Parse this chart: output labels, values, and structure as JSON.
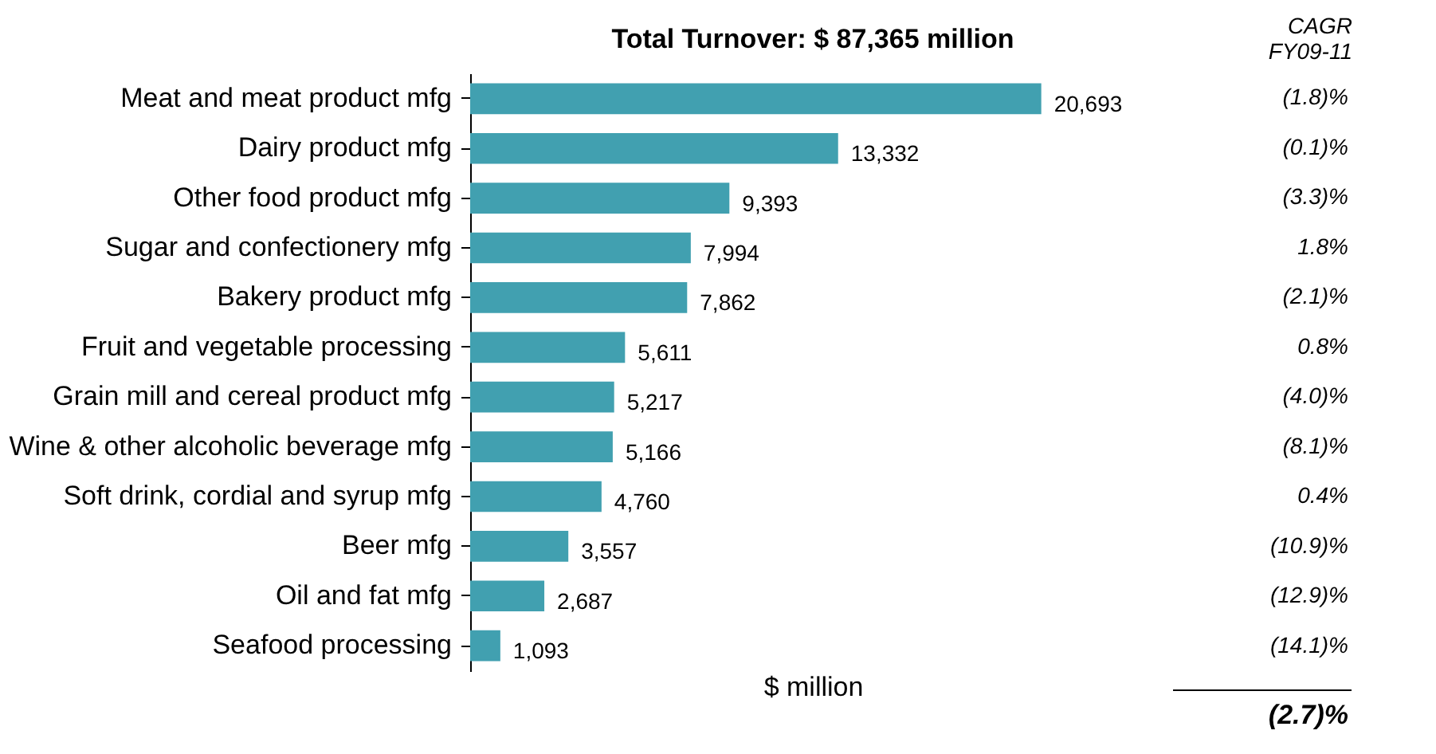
{
  "chart_data": {
    "type": "bar",
    "orientation": "horizontal",
    "title": "Total Turnover: $ 87,365 million",
    "xlabel": "$ million",
    "categories": [
      "Meat and meat product mfg",
      "Dairy product mfg",
      "Other food product mfg",
      "Sugar and confectionery mfg",
      "Bakery product mfg",
      "Fruit and vegetable processing",
      "Grain mill and cereal product mfg",
      "Wine & other alcoholic beverage mfg",
      "Soft drink, cordial and syrup mfg",
      "Beer mfg",
      "Oil and fat mfg",
      "Seafood processing"
    ],
    "values": [
      20693,
      13332,
      9393,
      7994,
      7862,
      5611,
      5217,
      5166,
      4760,
      3557,
      2687,
      1093
    ],
    "color": "#41a0b0",
    "data_labels": true,
    "value_labels": [
      "20,693",
      "13,332",
      "9,393",
      "7,994",
      "7,862",
      "5,611",
      "5,217",
      "5,166",
      "4,760",
      "3,557",
      "2,687",
      "1,093"
    ],
    "annotations": [
      "CAGR\nFY09-11",
      "(1.8)%",
      "(0.1)%",
      "(3.3)%",
      "1.8%",
      "(2.1)%",
      "0.8%",
      "(4.0)%",
      "(8.1)%",
      "0.4%",
      "(10.9)%",
      "(12.9)%",
      "(14.1)%",
      "(2.7)%"
    ]
  }
}
